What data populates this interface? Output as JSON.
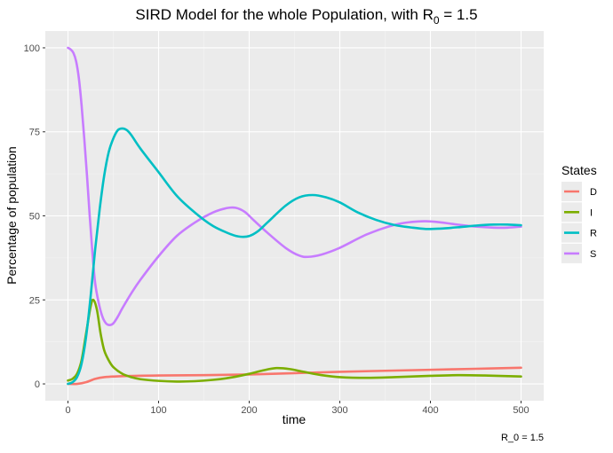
{
  "chart_data": {
    "type": "line",
    "title_main": "SIRD Model for the whole Population, with R",
    "title_sub": "0",
    "title_tail": " = 1.5",
    "xlabel": "time",
    "ylabel": "Percentage of population",
    "caption": "R_0 = 1.5",
    "xlim": [
      -25,
      525
    ],
    "ylim": [
      -5,
      105
    ],
    "x_ticks": [
      0,
      100,
      200,
      300,
      400,
      500
    ],
    "y_ticks": [
      0,
      25,
      50,
      75,
      100
    ],
    "grid": true,
    "legend": {
      "title": "States",
      "position": "right"
    },
    "series": [
      {
        "name": "D",
        "color": "#F8766D",
        "points": [
          [
            0,
            0
          ],
          [
            10,
            0
          ],
          [
            20,
            0.5
          ],
          [
            30,
            1.5
          ],
          [
            40,
            2
          ],
          [
            60,
            2.3
          ],
          [
            100,
            2.5
          ],
          [
            150,
            2.6
          ],
          [
            200,
            2.8
          ],
          [
            250,
            3.2
          ],
          [
            300,
            3.6
          ],
          [
            350,
            3.9
          ],
          [
            400,
            4.2
          ],
          [
            450,
            4.5
          ],
          [
            500,
            4.8
          ]
        ]
      },
      {
        "name": "I",
        "color": "#7CAE00",
        "points": [
          [
            0,
            1
          ],
          [
            5,
            1.5
          ],
          [
            10,
            3
          ],
          [
            15,
            7
          ],
          [
            20,
            15
          ],
          [
            25,
            23
          ],
          [
            28,
            25
          ],
          [
            32,
            22
          ],
          [
            36,
            15
          ],
          [
            40,
            10
          ],
          [
            45,
            7
          ],
          [
            50,
            5
          ],
          [
            60,
            3
          ],
          [
            70,
            2
          ],
          [
            80,
            1.4
          ],
          [
            100,
            0.9
          ],
          [
            120,
            0.7
          ],
          [
            140,
            0.8
          ],
          [
            160,
            1.2
          ],
          [
            180,
            1.9
          ],
          [
            200,
            3
          ],
          [
            215,
            4
          ],
          [
            230,
            4.7
          ],
          [
            245,
            4.4
          ],
          [
            260,
            3.6
          ],
          [
            280,
            2.6
          ],
          [
            300,
            2
          ],
          [
            330,
            1.8
          ],
          [
            360,
            2
          ],
          [
            400,
            2.4
          ],
          [
            430,
            2.6
          ],
          [
            460,
            2.5
          ],
          [
            500,
            2.2
          ]
        ]
      },
      {
        "name": "R",
        "color": "#00BFC4",
        "points": [
          [
            0,
            0
          ],
          [
            5,
            0.5
          ],
          [
            10,
            2
          ],
          [
            15,
            6
          ],
          [
            20,
            14
          ],
          [
            25,
            26
          ],
          [
            30,
            40
          ],
          [
            35,
            52
          ],
          [
            40,
            62
          ],
          [
            45,
            69
          ],
          [
            50,
            73
          ],
          [
            55,
            75.5
          ],
          [
            60,
            76
          ],
          [
            65,
            75.5
          ],
          [
            70,
            74
          ],
          [
            80,
            70
          ],
          [
            100,
            63
          ],
          [
            120,
            56
          ],
          [
            140,
            51
          ],
          [
            160,
            47
          ],
          [
            180,
            44.5
          ],
          [
            190,
            43.8
          ],
          [
            200,
            44
          ],
          [
            210,
            45.5
          ],
          [
            220,
            48
          ],
          [
            240,
            53
          ],
          [
            255,
            55.5
          ],
          [
            270,
            56.2
          ],
          [
            285,
            55.5
          ],
          [
            300,
            54
          ],
          [
            320,
            51
          ],
          [
            340,
            48.8
          ],
          [
            360,
            47.3
          ],
          [
            380,
            46.5
          ],
          [
            395,
            46.1
          ],
          [
            410,
            46.2
          ],
          [
            430,
            46.6
          ],
          [
            450,
            47.1
          ],
          [
            470,
            47.4
          ],
          [
            485,
            47.4
          ],
          [
            500,
            47.2
          ]
        ]
      },
      {
        "name": "S",
        "color": "#C77CFF",
        "points": [
          [
            0,
            100
          ],
          [
            3,
            99.5
          ],
          [
            6,
            98.5
          ],
          [
            9,
            96
          ],
          [
            12,
            91
          ],
          [
            15,
            83
          ],
          [
            18,
            73
          ],
          [
            21,
            62
          ],
          [
            24,
            50
          ],
          [
            27,
            39
          ],
          [
            30,
            30
          ],
          [
            34,
            24
          ],
          [
            38,
            20
          ],
          [
            42,
            18
          ],
          [
            46,
            17.5
          ],
          [
            50,
            18
          ],
          [
            55,
            20
          ],
          [
            60,
            22.5
          ],
          [
            70,
            27
          ],
          [
            80,
            31
          ],
          [
            100,
            38
          ],
          [
            120,
            44
          ],
          [
            140,
            48
          ],
          [
            160,
            51
          ],
          [
            175,
            52.3
          ],
          [
            185,
            52.4
          ],
          [
            195,
            51.2
          ],
          [
            205,
            48.7
          ],
          [
            220,
            45
          ],
          [
            240,
            40.5
          ],
          [
            255,
            38.2
          ],
          [
            265,
            37.8
          ],
          [
            280,
            38.5
          ],
          [
            300,
            40.5
          ],
          [
            330,
            44.5
          ],
          [
            360,
            47.3
          ],
          [
            380,
            48.2
          ],
          [
            395,
            48.4
          ],
          [
            410,
            48.1
          ],
          [
            430,
            47.4
          ],
          [
            450,
            46.8
          ],
          [
            470,
            46.5
          ],
          [
            485,
            46.5
          ],
          [
            500,
            46.8
          ]
        ]
      }
    ]
  }
}
